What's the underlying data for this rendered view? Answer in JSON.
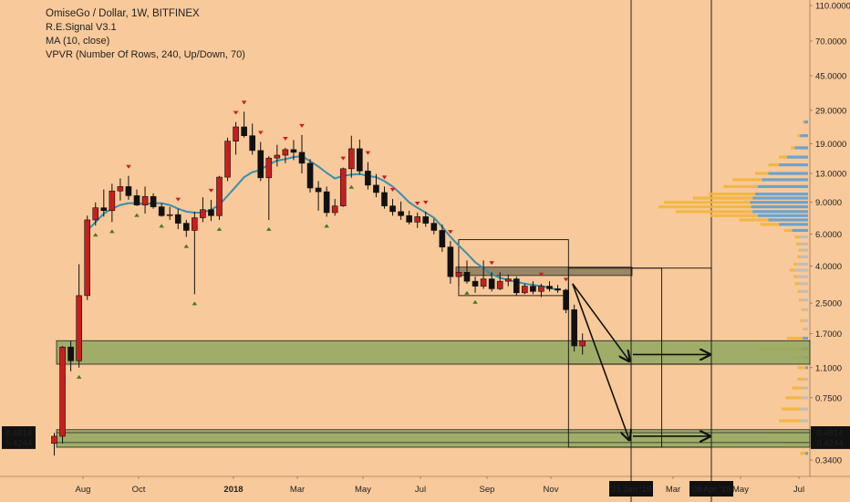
{
  "chart_data": {
    "type": "candlestick",
    "title": "OmiseGo / Dollar, 1W, BITFINEX",
    "indicators": [
      "R.E.Signal V3.1",
      "MA (10, close)",
      "VPVR (Number Of Rows, 240, Up/Down, 70)"
    ],
    "y_scale": "log",
    "y_ticks": [
      "110.0000",
      "70.0000",
      "45.0000",
      "29.0000",
      "19.0000",
      "13.0000",
      "9.0000",
      "6.0000",
      "4.0000",
      "2.5000",
      "1.7000",
      "1.1000",
      "0.7500",
      "0.3400"
    ],
    "y_price_labels": [
      "0.4814",
      "0.4244"
    ],
    "x_ticks": [
      "Aug",
      "Oct",
      "2018",
      "Mar",
      "May",
      "Jul",
      "Sep",
      "Nov",
      "Mar",
      "May",
      "Jul"
    ],
    "x_date_labels": [
      "21 Jan '19",
      "08 Apr '19"
    ],
    "ylim": [
      0.3,
      115
    ],
    "colors": {
      "background": "#f8c99a",
      "up": "#c81e1e",
      "down": "#111111",
      "ma": "#3a8fb0",
      "zone": "#8fa860",
      "vp_down": "#5b9fd6",
      "vp_up": "#f2b53a",
      "vp_grey": "#bcbcbc"
    },
    "candles": [
      {
        "o": 0.42,
        "h": 0.48,
        "l": 0.36,
        "c": 0.46
      },
      {
        "o": 0.46,
        "h": 1.45,
        "l": 0.42,
        "c": 1.43
      },
      {
        "o": 1.43,
        "h": 1.55,
        "l": 1.05,
        "c": 1.2
      },
      {
        "o": 1.2,
        "h": 4.1,
        "l": 1.1,
        "c": 2.75
      },
      {
        "o": 2.75,
        "h": 7.6,
        "l": 2.6,
        "c": 7.2
      },
      {
        "o": 7.2,
        "h": 9.0,
        "l": 6.7,
        "c": 8.4
      },
      {
        "o": 8.4,
        "h": 10.6,
        "l": 7.5,
        "c": 8.1
      },
      {
        "o": 8.1,
        "h": 11.4,
        "l": 7.0,
        "c": 10.4
      },
      {
        "o": 10.4,
        "h": 12.2,
        "l": 9.2,
        "c": 11.0
      },
      {
        "o": 11.0,
        "h": 12.6,
        "l": 9.3,
        "c": 9.8
      },
      {
        "o": 9.8,
        "h": 10.6,
        "l": 8.6,
        "c": 8.7
      },
      {
        "o": 8.7,
        "h": 11.0,
        "l": 7.8,
        "c": 9.7
      },
      {
        "o": 9.7,
        "h": 10.1,
        "l": 8.3,
        "c": 8.5
      },
      {
        "o": 8.5,
        "h": 8.9,
        "l": 7.5,
        "c": 7.6
      },
      {
        "o": 7.6,
        "h": 8.5,
        "l": 7.2,
        "c": 7.7
      },
      {
        "o": 7.7,
        "h": 8.3,
        "l": 6.4,
        "c": 6.9
      },
      {
        "o": 6.9,
        "h": 7.2,
        "l": 5.8,
        "c": 6.3
      },
      {
        "o": 6.3,
        "h": 8.0,
        "l": 2.8,
        "c": 7.4
      },
      {
        "o": 7.4,
        "h": 9.6,
        "l": 7.0,
        "c": 8.2
      },
      {
        "o": 8.2,
        "h": 9.3,
        "l": 7.1,
        "c": 7.6
      },
      {
        "o": 7.6,
        "h": 12.6,
        "l": 7.2,
        "c": 12.4
      },
      {
        "o": 12.4,
        "h": 20.5,
        "l": 11.8,
        "c": 19.6
      },
      {
        "o": 19.6,
        "h": 25.0,
        "l": 16.5,
        "c": 23.5
      },
      {
        "o": 23.5,
        "h": 28.5,
        "l": 20.5,
        "c": 21.0
      },
      {
        "o": 21.0,
        "h": 24.5,
        "l": 16.5,
        "c": 17.4
      },
      {
        "o": 17.4,
        "h": 19.4,
        "l": 11.8,
        "c": 12.3
      },
      {
        "o": 12.3,
        "h": 16.2,
        "l": 7.2,
        "c": 15.8
      },
      {
        "o": 15.8,
        "h": 18.7,
        "l": 14.2,
        "c": 16.4
      },
      {
        "o": 16.4,
        "h": 18.0,
        "l": 14.8,
        "c": 17.6
      },
      {
        "o": 17.6,
        "h": 19.9,
        "l": 15.4,
        "c": 17.0
      },
      {
        "o": 17.0,
        "h": 21.2,
        "l": 13.0,
        "c": 14.8
      },
      {
        "o": 14.8,
        "h": 15.6,
        "l": 10.2,
        "c": 10.8
      },
      {
        "o": 10.8,
        "h": 11.8,
        "l": 8.1,
        "c": 10.3
      },
      {
        "o": 10.3,
        "h": 11.0,
        "l": 7.5,
        "c": 7.9
      },
      {
        "o": 7.9,
        "h": 9.4,
        "l": 7.6,
        "c": 8.6
      },
      {
        "o": 8.6,
        "h": 14.0,
        "l": 8.5,
        "c": 13.8
      },
      {
        "o": 13.8,
        "h": 21.0,
        "l": 12.3,
        "c": 17.8
      },
      {
        "o": 17.8,
        "h": 20.0,
        "l": 12.8,
        "c": 13.4
      },
      {
        "o": 13.4,
        "h": 15.0,
        "l": 10.6,
        "c": 11.2
      },
      {
        "o": 11.2,
        "h": 12.9,
        "l": 9.6,
        "c": 10.2
      },
      {
        "o": 10.2,
        "h": 11.0,
        "l": 8.3,
        "c": 8.6
      },
      {
        "o": 8.6,
        "h": 9.4,
        "l": 7.6,
        "c": 8.0
      },
      {
        "o": 8.0,
        "h": 9.1,
        "l": 7.2,
        "c": 7.6
      },
      {
        "o": 7.6,
        "h": 8.1,
        "l": 6.8,
        "c": 7.0
      },
      {
        "o": 7.0,
        "h": 7.9,
        "l": 6.5,
        "c": 7.5
      },
      {
        "o": 7.5,
        "h": 8.0,
        "l": 6.6,
        "c": 6.9
      },
      {
        "o": 6.9,
        "h": 7.3,
        "l": 6.0,
        "c": 6.3
      },
      {
        "o": 6.3,
        "h": 6.8,
        "l": 4.8,
        "c": 5.1
      },
      {
        "o": 5.1,
        "h": 5.5,
        "l": 3.2,
        "c": 3.5
      },
      {
        "o": 3.5,
        "h": 4.1,
        "l": 3.1,
        "c": 3.7
      },
      {
        "o": 3.7,
        "h": 4.3,
        "l": 3.2,
        "c": 3.3
      },
      {
        "o": 3.3,
        "h": 3.5,
        "l": 2.85,
        "c": 3.1
      },
      {
        "o": 3.1,
        "h": 4.3,
        "l": 3.0,
        "c": 3.4
      },
      {
        "o": 3.4,
        "h": 3.7,
        "l": 2.9,
        "c": 3.0
      },
      {
        "o": 3.0,
        "h": 3.7,
        "l": 2.95,
        "c": 3.3
      },
      {
        "o": 3.3,
        "h": 3.6,
        "l": 3.1,
        "c": 3.4
      },
      {
        "o": 3.4,
        "h": 3.5,
        "l": 2.75,
        "c": 2.85
      },
      {
        "o": 2.85,
        "h": 3.2,
        "l": 2.8,
        "c": 3.1
      },
      {
        "o": 3.1,
        "h": 3.3,
        "l": 2.8,
        "c": 2.9
      },
      {
        "o": 2.9,
        "h": 3.2,
        "l": 2.7,
        "c": 3.1
      },
      {
        "o": 3.1,
        "h": 3.3,
        "l": 2.9,
        "c": 3.0
      },
      {
        "o": 3.0,
        "h": 3.15,
        "l": 2.85,
        "c": 2.95
      },
      {
        "o": 2.95,
        "h": 3.0,
        "l": 2.2,
        "c": 2.3
      },
      {
        "o": 2.3,
        "h": 2.45,
        "l": 1.35,
        "c": 1.45
      },
      {
        "o": 1.45,
        "h": 1.7,
        "l": 1.3,
        "c": 1.55
      }
    ],
    "ma_line": [
      [
        4,
        6.3
      ],
      [
        5,
        7.0
      ],
      [
        6,
        7.8
      ],
      [
        7,
        8.3
      ],
      [
        8,
        8.7
      ],
      [
        9,
        8.9
      ],
      [
        10,
        8.9
      ],
      [
        11,
        8.8
      ],
      [
        12,
        8.9
      ],
      [
        13,
        8.9
      ],
      [
        14,
        8.7
      ],
      [
        15,
        8.3
      ],
      [
        16,
        8.0
      ],
      [
        17,
        7.9
      ],
      [
        18,
        7.9
      ],
      [
        19,
        8.2
      ],
      [
        20,
        8.7
      ],
      [
        21,
        9.8
      ],
      [
        22,
        11.0
      ],
      [
        23,
        12.4
      ],
      [
        24,
        13.2
      ],
      [
        25,
        13.6
      ],
      [
        26,
        14.6
      ],
      [
        27,
        15.3
      ],
      [
        28,
        15.6
      ],
      [
        29,
        16.0
      ],
      [
        30,
        16.2
      ],
      [
        31,
        15.2
      ],
      [
        32,
        14.2
      ],
      [
        33,
        13.1
      ],
      [
        34,
        12.2
      ],
      [
        35,
        12.6
      ],
      [
        36,
        12.8
      ],
      [
        37,
        12.9
      ],
      [
        38,
        12.6
      ],
      [
        39,
        12.4
      ],
      [
        40,
        11.8
      ],
      [
        41,
        11.0
      ],
      [
        42,
        10.0
      ],
      [
        43,
        9.0
      ],
      [
        44,
        8.4
      ],
      [
        45,
        7.9
      ],
      [
        46,
        7.4
      ],
      [
        47,
        6.6
      ],
      [
        48,
        5.8
      ],
      [
        49,
        5.2
      ],
      [
        50,
        4.7
      ],
      [
        51,
        4.2
      ],
      [
        52,
        3.9
      ],
      [
        53,
        3.6
      ],
      [
        54,
        3.45
      ],
      [
        55,
        3.35
      ],
      [
        56,
        3.28
      ],
      [
        57,
        3.2
      ],
      [
        58,
        3.15
      ],
      [
        59,
        3.1
      ],
      [
        60,
        3.05
      ],
      [
        61,
        2.95
      ]
    ],
    "up_signals": [
      3,
      5,
      7,
      10,
      13,
      16,
      17,
      20,
      26,
      33,
      36,
      50,
      51
    ],
    "down_signals": [
      9,
      15,
      19,
      22,
      23,
      25,
      28,
      30,
      35,
      38,
      40,
      41,
      44,
      45,
      48,
      53,
      59,
      62
    ],
    "zones": [
      {
        "low": 1.15,
        "high": 1.55
      },
      {
        "low": 0.4,
        "high": 0.5
      },
      {
        "low": 3.55,
        "high": 3.95
      }
    ],
    "boxes": [
      {
        "x0": 49.0,
        "x1": 62.3,
        "low": 2.75,
        "high": 5.6
      },
      {
        "x0": 62.3,
        "x1": 73.6,
        "low": 1.15,
        "high": 3.9
      },
      {
        "x0": 62.3,
        "x1": 73.6,
        "low": 0.4,
        "high": 1.15
      }
    ],
    "arrows": [
      {
        "from": [
          62.8,
          3.2
        ],
        "to": [
          73.3,
          1.2
        ]
      },
      {
        "from": [
          62.8,
          3.2
        ],
        "to": [
          73.3,
          0.44
        ]
      },
      {
        "from": [
          73.6,
          1.3
        ],
        "to": [
          82.5,
          1.3
        ]
      },
      {
        "from": [
          73.6,
          0.46
        ],
        "to": [
          82.5,
          0.46
        ]
      }
    ],
    "volume_profile": [
      {
        "p": 25.0,
        "down": 3,
        "up": 1
      },
      {
        "p": 21.0,
        "down": 6,
        "up": 2
      },
      {
        "p": 18.0,
        "down": 10,
        "up": 3
      },
      {
        "p": 16.0,
        "down": 16,
        "up": 6
      },
      {
        "p": 14.5,
        "down": 22,
        "up": 8
      },
      {
        "p": 13.0,
        "down": 30,
        "up": 10
      },
      {
        "p": 12.0,
        "down": 35,
        "up": 22
      },
      {
        "p": 11.0,
        "down": 38,
        "up": 26
      },
      {
        "p": 10.0,
        "down": 40,
        "up": 35
      },
      {
        "p": 9.5,
        "down": 42,
        "up": 45
      },
      {
        "p": 9.0,
        "down": 44,
        "up": 65
      },
      {
        "p": 8.5,
        "down": 43,
        "up": 70
      },
      {
        "p": 8.0,
        "down": 42,
        "up": 58
      },
      {
        "p": 7.6,
        "down": 38,
        "up": 36
      },
      {
        "p": 7.2,
        "down": 30,
        "up": 22
      },
      {
        "p": 6.8,
        "down": 22,
        "up": 14
      },
      {
        "p": 6.3,
        "down": 12,
        "up": 6
      },
      {
        "p": 5.8,
        "down": 7,
        "up": 3
      },
      {
        "p": 5.3,
        "down": 6,
        "up": 3
      },
      {
        "p": 4.9,
        "down": 5,
        "up": 2
      },
      {
        "p": 4.5,
        "down": 6,
        "up": 2
      },
      {
        "p": 4.1,
        "down": 8,
        "up": 3
      },
      {
        "p": 3.8,
        "down": 10,
        "up": 4
      },
      {
        "p": 3.5,
        "down": 8,
        "up": 3
      },
      {
        "p": 3.2,
        "down": 7,
        "up": 3
      },
      {
        "p": 2.9,
        "down": 6,
        "up": 2
      },
      {
        "p": 2.6,
        "down": 5,
        "up": 2
      },
      {
        "p": 2.3,
        "down": 4,
        "up": 1
      },
      {
        "p": 2.0,
        "down": 4,
        "up": 2
      },
      {
        "p": 1.8,
        "down": 3,
        "up": 1
      },
      {
        "p": 1.6,
        "down": 4,
        "up": 12
      },
      {
        "p": 1.4,
        "down": 5,
        "up": 30
      },
      {
        "p": 1.25,
        "down": 3,
        "up": 8
      },
      {
        "p": 1.1,
        "down": 2,
        "up": 6
      },
      {
        "p": 0.95,
        "down": 3,
        "up": 5
      },
      {
        "p": 0.85,
        "down": 4,
        "up": 8
      },
      {
        "p": 0.75,
        "down": 5,
        "up": 12
      },
      {
        "p": 0.65,
        "down": 6,
        "up": 14
      },
      {
        "p": 0.56,
        "down": 6,
        "up": 16
      },
      {
        "p": 0.48,
        "down": 8,
        "up": 20
      },
      {
        "p": 0.42,
        "down": 6,
        "up": 12
      },
      {
        "p": 0.37,
        "down": 2,
        "up": 4
      }
    ]
  }
}
